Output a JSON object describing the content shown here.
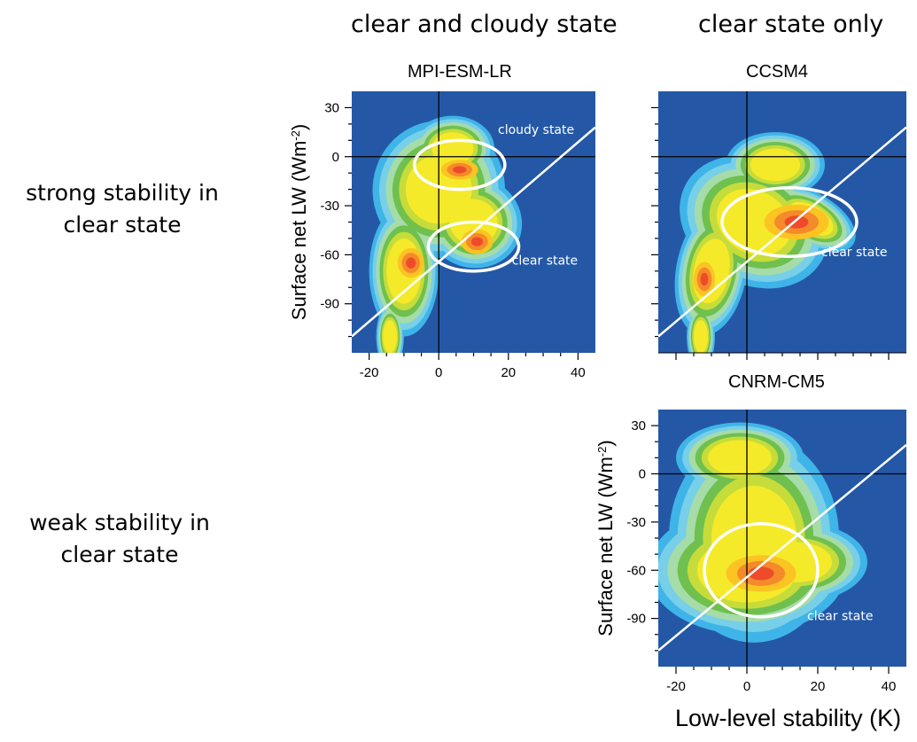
{
  "column_headers": [
    "clear and cloudy state",
    "clear state only"
  ],
  "row_headers": [
    {
      "line1": "strong stability in",
      "line2": "clear state"
    },
    {
      "line1": "weak stability in",
      "line2": "clear state"
    }
  ],
  "global_xlabel": "Low-level stability (K)",
  "colors": {
    "background": "#2458a6",
    "levels": [
      "#3fb4e8",
      "#78cfe8",
      "#a6dca8",
      "#6fc04e",
      "#c6dc3a",
      "#f5ea2a",
      "#fbc423",
      "#f48a2a",
      "#ee4b2b"
    ]
  },
  "chart_data": [
    {
      "type": "heatmap",
      "title": "MPI-ESM-LR",
      "ylabel": "Surface net LW",
      "ylabel_unit": "(Wm",
      "ylabel_exp": "-2",
      "ylabel_close": ")",
      "xlim": [
        -25,
        45
      ],
      "ylim": [
        -120,
        40
      ],
      "xticks": [
        "-20",
        "0",
        "20",
        "40"
      ],
      "yticks": [
        "30",
        "0",
        "-30",
        "-60",
        "-90"
      ],
      "show_xtick_labels": true,
      "show_ylabel": true,
      "reference_lines": {
        "x": 0,
        "y": 0
      },
      "state_line": {
        "x1": -25,
        "y1": -110,
        "x2": 45,
        "y2": 18
      },
      "ellipses": [
        {
          "cx": 6,
          "cy": -5,
          "rx": 13,
          "ry": 15
        },
        {
          "cx": 10,
          "cy": -55,
          "rx": 13,
          "ry": 15
        }
      ],
      "annotations": [
        {
          "text": "cloudy state",
          "x": 17,
          "y": 14
        },
        {
          "text": "clear state",
          "x": 21,
          "y": -66
        }
      ]
    },
    {
      "type": "heatmap",
      "title": "CCSM4",
      "ylabel": "",
      "xlim": [
        -25,
        45
      ],
      "ylim": [
        -120,
        40
      ],
      "xticks": [
        "",
        "",
        "",
        ""
      ],
      "yticks": [
        "",
        "",
        "",
        "",
        ""
      ],
      "show_xtick_labels": false,
      "show_ylabel": false,
      "reference_lines": {
        "x": 0,
        "y": 0
      },
      "state_line": {
        "x1": -25,
        "y1": -110,
        "x2": 45,
        "y2": 18
      },
      "ellipses": [
        {
          "cx": 12,
          "cy": -40,
          "rx": 19,
          "ry": 21
        }
      ],
      "annotations": [
        {
          "text": "clear state",
          "x": 21,
          "y": -61
        }
      ]
    },
    {
      "type": "heatmap",
      "title": "CNRM-CM5",
      "ylabel": "Surface net LW",
      "ylabel_unit": "(Wm",
      "ylabel_exp": "-2",
      "ylabel_close": ")",
      "xlim": [
        -25,
        45
      ],
      "ylim": [
        -120,
        40
      ],
      "xticks": [
        "-20",
        "0",
        "20",
        "40"
      ],
      "yticks": [
        "30",
        "0",
        "-30",
        "-60",
        "-90"
      ],
      "show_xtick_labels": true,
      "show_ylabel": true,
      "reference_lines": {
        "x": 0,
        "y": 0
      },
      "state_line": {
        "x1": -25,
        "y1": -110,
        "x2": 45,
        "y2": 18
      },
      "ellipses": [
        {
          "cx": 4,
          "cy": -60,
          "rx": 16,
          "ry": 29
        }
      ],
      "annotations": [
        {
          "text": "clear state",
          "x": 17,
          "y": -91
        }
      ]
    }
  ]
}
